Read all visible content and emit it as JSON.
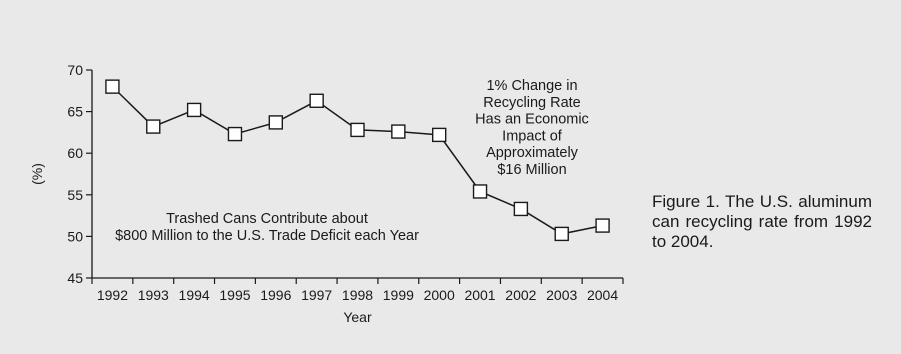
{
  "caption": "Figure 1. The U.S. aluminum can recycling rate from 1992 to 2004.",
  "chart_data": {
    "type": "line",
    "title": "",
    "xlabel": "Year",
    "ylabel": "(%)",
    "x": [
      "1992",
      "1993",
      "1994",
      "1995",
      "1996",
      "1997",
      "1998",
      "1999",
      "2000",
      "2001",
      "2002",
      "2003",
      "2004"
    ],
    "series": [
      {
        "values": [
          68.0,
          63.2,
          65.2,
          62.3,
          63.7,
          66.3,
          62.8,
          62.6,
          62.2,
          55.4,
          53.3,
          50.3,
          51.3
        ]
      }
    ],
    "ylim": [
      45,
      70
    ],
    "yticks": [
      45,
      50,
      55,
      60,
      65,
      70
    ],
    "marker": "open-square",
    "grid": false,
    "line_color": "#1a1a1a",
    "annotations": [
      {
        "id": "economic-impact-note",
        "lines": [
          "1% Change in",
          "Recycling Rate",
          "Has an Economic",
          "Impact of",
          "Approximately",
          "$16 Million"
        ]
      },
      {
        "id": "trade-deficit-note",
        "lines": [
          "Trashed Cans Contribute about",
          "$800 Million to the U.S. Trade Deficit each Year"
        ]
      }
    ]
  }
}
